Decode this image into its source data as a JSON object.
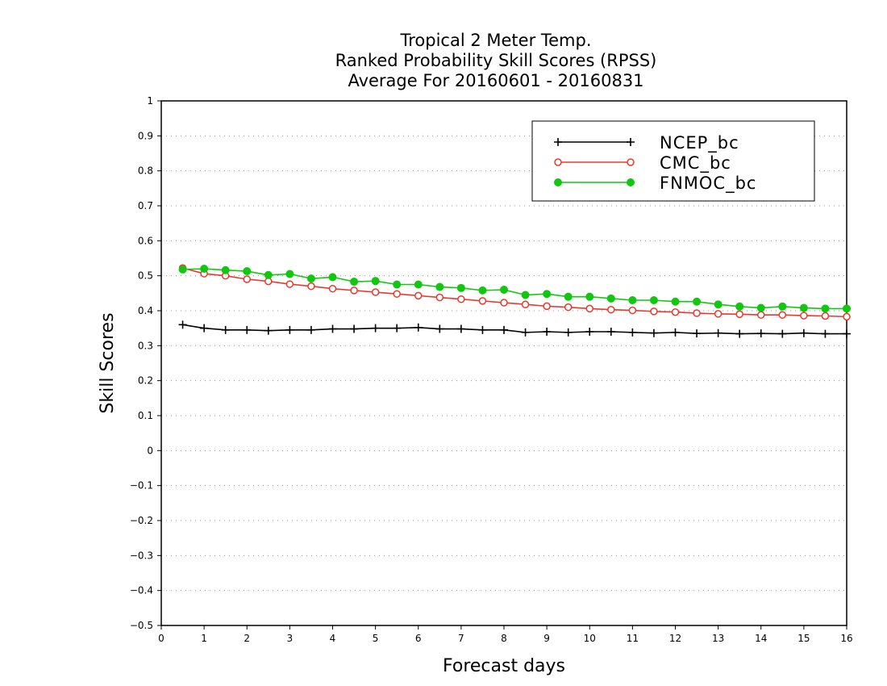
{
  "chart_data": {
    "type": "line",
    "title": [
      "Tropical 2 Meter Temp.",
      "Ranked Probability Skill Scores (RPSS)",
      "Average For 20160601 - 20160831"
    ],
    "xlabel": "Forecast days",
    "ylabel": "Skill Scores",
    "xlim": [
      0,
      16
    ],
    "ylim": [
      -0.5,
      1
    ],
    "xticks": [
      "0",
      "1",
      "2",
      "3",
      "4",
      "5",
      "6",
      "7",
      "8",
      "9",
      "10",
      "11",
      "12",
      "13",
      "14",
      "15",
      "16"
    ],
    "yticks": [
      "1",
      "0.9",
      "0.8",
      "0.7",
      "0.6",
      "0.5",
      "0.4",
      "0.3",
      "0.2",
      "0.1",
      "0",
      "−0.1",
      "−0.2",
      "−0.3",
      "−0.4",
      "−0.5"
    ],
    "grid": "horizontal-dotted",
    "legend_position": "top-right",
    "x": [
      0.5,
      1,
      1.5,
      2,
      2.5,
      3,
      3.5,
      4,
      4.5,
      5,
      5.5,
      6,
      6.5,
      7,
      7.5,
      8,
      8.5,
      9,
      9.5,
      10,
      10.5,
      11,
      11.5,
      12,
      12.5,
      13,
      13.5,
      14,
      14.5,
      15,
      15.5,
      16
    ],
    "series": [
      {
        "name": "NCEP_bc",
        "color": "#000000",
        "marker": "plus",
        "values": [
          0.36,
          0.35,
          0.345,
          0.345,
          0.343,
          0.345,
          0.345,
          0.348,
          0.348,
          0.35,
          0.35,
          0.352,
          0.348,
          0.348,
          0.345,
          0.345,
          0.338,
          0.34,
          0.338,
          0.34,
          0.34,
          0.338,
          0.336,
          0.338,
          0.335,
          0.336,
          0.334,
          0.335,
          0.334,
          0.336,
          0.334,
          0.334
        ]
      },
      {
        "name": "CMC_bc",
        "color": "#e8382e",
        "marker": "open-circle",
        "values": [
          0.522,
          0.506,
          0.5,
          0.49,
          0.484,
          0.476,
          0.47,
          0.463,
          0.458,
          0.453,
          0.448,
          0.443,
          0.438,
          0.433,
          0.428,
          0.423,
          0.418,
          0.413,
          0.41,
          0.406,
          0.403,
          0.401,
          0.398,
          0.396,
          0.393,
          0.391,
          0.39,
          0.388,
          0.388,
          0.386,
          0.385,
          0.383
        ]
      },
      {
        "name": "FNMOC_bc",
        "color": "#11c711",
        "marker": "filled-circle",
        "values": [
          0.518,
          0.52,
          0.516,
          0.513,
          0.502,
          0.505,
          0.492,
          0.496,
          0.483,
          0.485,
          0.475,
          0.475,
          0.468,
          0.465,
          0.458,
          0.46,
          0.445,
          0.448,
          0.44,
          0.44,
          0.435,
          0.43,
          0.43,
          0.426,
          0.426,
          0.418,
          0.412,
          0.408,
          0.412,
          0.408,
          0.406,
          0.406
        ]
      }
    ]
  }
}
